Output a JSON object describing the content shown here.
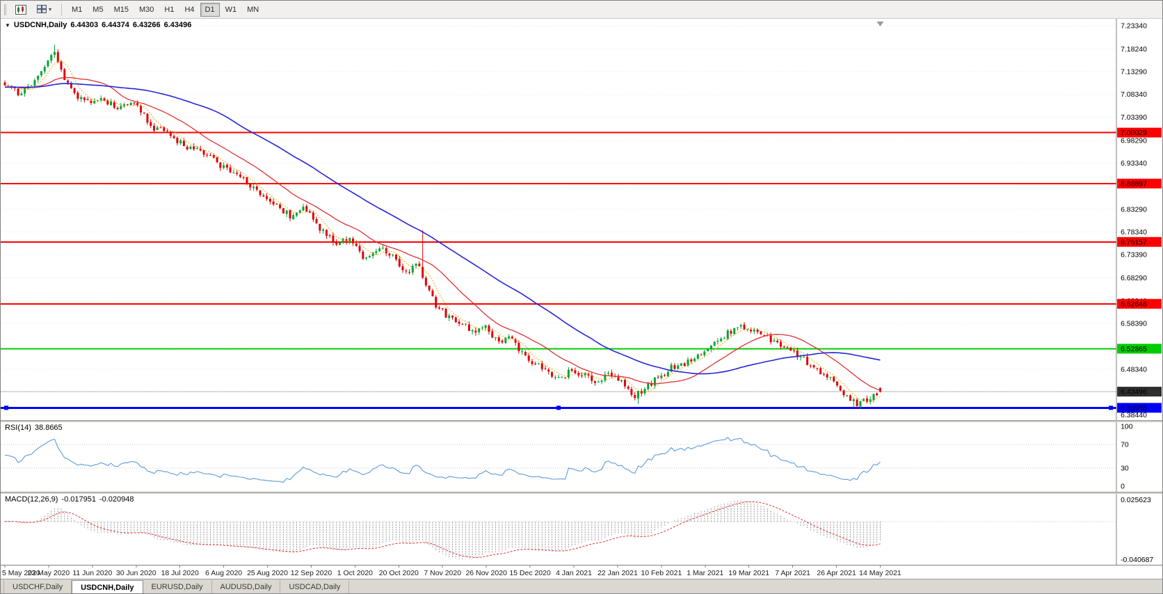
{
  "toolbar": {
    "timeframes": [
      {
        "label": "M1",
        "active": false
      },
      {
        "label": "M5",
        "active": false
      },
      {
        "label": "M15",
        "active": false
      },
      {
        "label": "M30",
        "active": false
      },
      {
        "label": "H1",
        "active": false
      },
      {
        "label": "H4",
        "active": false
      },
      {
        "label": "D1",
        "active": true
      },
      {
        "label": "W1",
        "active": false
      },
      {
        "label": "MN",
        "active": false
      }
    ]
  },
  "icons": {
    "dropdown_caret": "▾",
    "symbol_dropdown": "▼"
  },
  "chart": {
    "symbol_title": "USDCNH,Daily",
    "open": "6.44303",
    "high": "6.44374",
    "low": "6.43266",
    "close": "6.43496"
  },
  "chart_data": {
    "type": "candlestick",
    "symbol": "USDCNH",
    "timeframe": "Daily",
    "price_range": {
      "top": 7.2334,
      "bottom": 6.3844
    },
    "y_axis_labels": [
      "7.23340",
      "7.18240",
      "7.13290",
      "7.08340",
      "7.03390",
      "6.98290",
      "6.93340",
      "6.88390",
      "6.83290",
      "6.78340",
      "6.73390",
      "6.68290",
      "6.63340",
      "6.58390",
      "6.53290",
      "6.48340",
      "6.43390",
      "6.38440"
    ],
    "x_axis_labels": [
      "5 May 2020",
      "23 May 2020",
      "11 Jun 2020",
      "30 Jun 2020",
      "18 Jul 2020",
      "6 Aug 2020",
      "25 Aug 2020",
      "12 Sep 2020",
      "1 Oct 2020",
      "20 Oct 2020",
      "7 Nov 2020",
      "26 Nov 2020",
      "15 Dec 2020",
      "4 Jan 2021",
      "22 Jan 2021",
      "10 Feb 2021",
      "1 Mar 2021",
      "19 Mar 2021",
      "7 Apr 2021",
      "26 Apr 2021",
      "14 May 2021"
    ],
    "h_lines": [
      {
        "price": 7.00029,
        "label": "7.00029",
        "color": "#ff0000",
        "width": 2,
        "handles": false
      },
      {
        "price": 6.88897,
        "label": "6.88897",
        "color": "#ff0000",
        "width": 2,
        "handles": false
      },
      {
        "price": 6.76157,
        "label": "6.76157",
        "color": "#ff0000",
        "width": 2,
        "handles": false
      },
      {
        "price": 6.62646,
        "label": "6.62646",
        "color": "#ff0000",
        "width": 2,
        "handles": false
      },
      {
        "price": 6.52865,
        "label": "6.52865",
        "color": "#00cc00",
        "width": 2,
        "handles": false
      },
      {
        "price": 6.39955,
        "label": "6.39955",
        "color": "#0000ff",
        "width": 3,
        "handles": true
      }
    ],
    "current_price": {
      "price": 6.43496,
      "label": "6.43496",
      "badge_bg": "#2e2e2e",
      "line_color": "#b8b8b8"
    },
    "colors": {
      "up": "#00a432",
      "down": "#e00000",
      "background": "#ffffff",
      "grid": "#e3e3e3",
      "axis_text": "#000000"
    },
    "mas": [
      {
        "name": "ma-fast-dotted",
        "period": 6,
        "color": "#f0a400",
        "width": 1,
        "dashed": true
      },
      {
        "name": "ma-mid",
        "period": 20,
        "color": "#e03030",
        "width": 1.3,
        "dashed": false
      },
      {
        "name": "ma-slow",
        "period": 55,
        "color": "#2424d8",
        "width": 1.6,
        "dashed": false
      }
    ],
    "indicators": {
      "rsi": {
        "label": "RSI(14)",
        "value": "38.8665",
        "period": 14,
        "color": "#5b9bd5",
        "levels": [
          30,
          70
        ],
        "axis_labels": [
          {
            "text": "100",
            "value": 100
          },
          {
            "text": "70",
            "value": 70
          },
          {
            "text": "30",
            "value": 30
          },
          {
            "text": "0",
            "value": 0
          }
        ]
      },
      "macd": {
        "label": "MACD(12,26,9)",
        "value_main": "-0.017951",
        "value_signal": "-0.020948",
        "fast": 12,
        "slow": 26,
        "signal": 9,
        "axis_top": "0.025623",
        "axis_bottom": "-0.040687",
        "signal_color": "#e03030",
        "histogram_color": "#9a9a9a"
      }
    },
    "candle_count": 265,
    "warmup_candles": 60,
    "trend_keypoints": [
      [
        0.0,
        7.11
      ],
      [
        0.015,
        7.085
      ],
      [
        0.04,
        7.125
      ],
      [
        0.057,
        7.183
      ],
      [
        0.068,
        7.115
      ],
      [
        0.09,
        7.065
      ],
      [
        0.11,
        7.076
      ],
      [
        0.13,
        7.05
      ],
      [
        0.148,
        7.068
      ],
      [
        0.168,
        7.012
      ],
      [
        0.188,
        6.995
      ],
      [
        0.208,
        6.968
      ],
      [
        0.228,
        6.955
      ],
      [
        0.248,
        6.925
      ],
      [
        0.268,
        6.905
      ],
      [
        0.288,
        6.872
      ],
      [
        0.308,
        6.842
      ],
      [
        0.326,
        6.818
      ],
      [
        0.342,
        6.843
      ],
      [
        0.36,
        6.788
      ],
      [
        0.378,
        6.758
      ],
      [
        0.394,
        6.772
      ],
      [
        0.41,
        6.722
      ],
      [
        0.428,
        6.748
      ],
      [
        0.444,
        6.728
      ],
      [
        0.458,
        6.695
      ],
      [
        0.472,
        6.712
      ],
      [
        0.48,
        6.672
      ],
      [
        0.492,
        6.625
      ],
      [
        0.505,
        6.6
      ],
      [
        0.52,
        6.585
      ],
      [
        0.535,
        6.568
      ],
      [
        0.548,
        6.578
      ],
      [
        0.562,
        6.545
      ],
      [
        0.576,
        6.552
      ],
      [
        0.59,
        6.522
      ],
      [
        0.604,
        6.498
      ],
      [
        0.618,
        6.478
      ],
      [
        0.632,
        6.46
      ],
      [
        0.648,
        6.482
      ],
      [
        0.662,
        6.472
      ],
      [
        0.676,
        6.455
      ],
      [
        0.69,
        6.478
      ],
      [
        0.704,
        6.458
      ],
      [
        0.718,
        6.425
      ],
      [
        0.732,
        6.442
      ],
      [
        0.748,
        6.468
      ],
      [
        0.762,
        6.488
      ],
      [
        0.778,
        6.498
      ],
      [
        0.794,
        6.518
      ],
      [
        0.81,
        6.54
      ],
      [
        0.826,
        6.562
      ],
      [
        0.84,
        6.578
      ],
      [
        0.852,
        6.57
      ],
      [
        0.866,
        6.556
      ],
      [
        0.88,
        6.546
      ],
      [
        0.894,
        6.528
      ],
      [
        0.908,
        6.512
      ],
      [
        0.922,
        6.492
      ],
      [
        0.936,
        6.472
      ],
      [
        0.95,
        6.452
      ],
      [
        0.962,
        6.425
      ],
      [
        0.974,
        6.405
      ],
      [
        0.986,
        6.418
      ],
      [
        1.0,
        6.435
      ]
    ],
    "spikes": [
      {
        "t": 0.057,
        "high": 7.192
      },
      {
        "t": 0.478,
        "high": 6.787
      },
      {
        "t": 0.724,
        "low": 6.408
      },
      {
        "t": 0.968,
        "low": 6.3996
      },
      {
        "t": 0.976,
        "low": 6.3998
      }
    ],
    "final_candle": {
      "o": 6.44303,
      "h": 6.44374,
      "l": 6.43266,
      "c": 6.43496
    }
  },
  "tabs": [
    {
      "label": "USDCHF,Daily",
      "active": false
    },
    {
      "label": "USDCNH,Daily",
      "active": true
    },
    {
      "label": "EURUSD,Daily",
      "active": false
    },
    {
      "label": "AUDUSD,Daily",
      "active": false
    },
    {
      "label": "USDCAD,Daily",
      "active": false
    }
  ]
}
